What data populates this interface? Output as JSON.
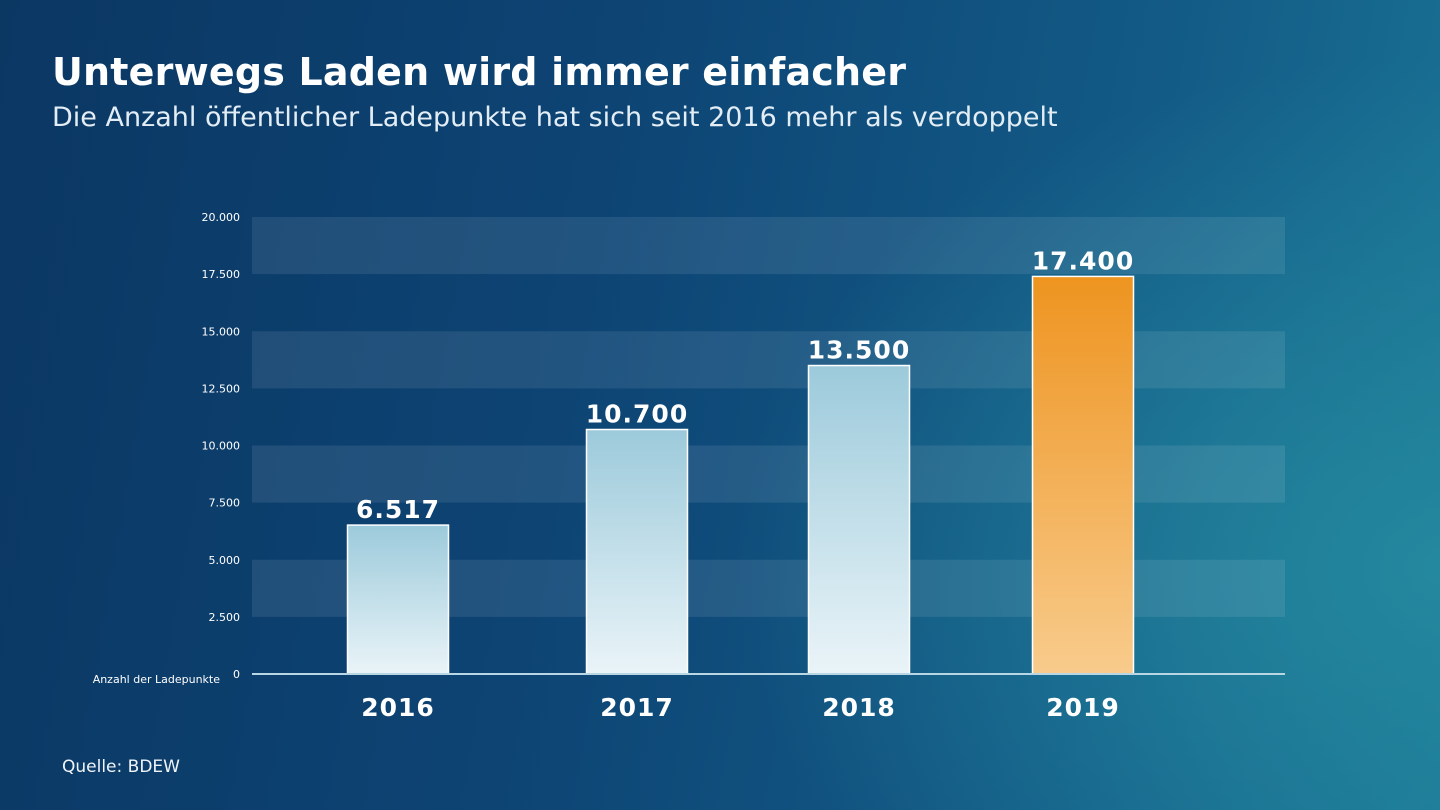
{
  "header": {
    "title": "Unterwegs Laden wird immer einfacher",
    "subtitle": "Die Anzahl öffentlicher Ladepunkte hat sich seit 2016 mehr als verdoppelt"
  },
  "footer": {
    "source": "Quelle: BDEW"
  },
  "colors": {
    "bar_default_top": "#9ccadb",
    "bar_default_bottom": "#eaf4f8",
    "bar_highlight_top": "#ee9420",
    "bar_highlight_bottom": "#f8cb8c",
    "band": "#ffffff",
    "axis": "#b9d6e4"
  },
  "chart_data": {
    "type": "bar",
    "title": "Unterwegs Laden wird immer einfacher",
    "subtitle": "Die Anzahl öffentlicher Ladepunkte hat sich seit 2016 mehr als verdoppelt",
    "xlabel": "",
    "ylabel": "Anzahl der Ladepunkte",
    "categories": [
      "2016",
      "2017",
      "2018",
      "2019"
    ],
    "values": [
      6517,
      10700,
      13500,
      17400
    ],
    "value_labels": [
      "6.517",
      "10.700",
      "13.500",
      "17.400"
    ],
    "highlight_index": 3,
    "ylim": [
      0,
      20000
    ],
    "yticks": [
      0,
      2500,
      5000,
      7500,
      10000,
      12500,
      15000,
      17500,
      20000
    ],
    "ytick_labels": [
      "0",
      "2.500",
      "5.000",
      "7.500",
      "10.000",
      "12.500",
      "15.000",
      "17.500",
      "20.000"
    ],
    "grid": "alternating horizontal bands",
    "legend": "none",
    "source": "Quelle: BDEW"
  }
}
